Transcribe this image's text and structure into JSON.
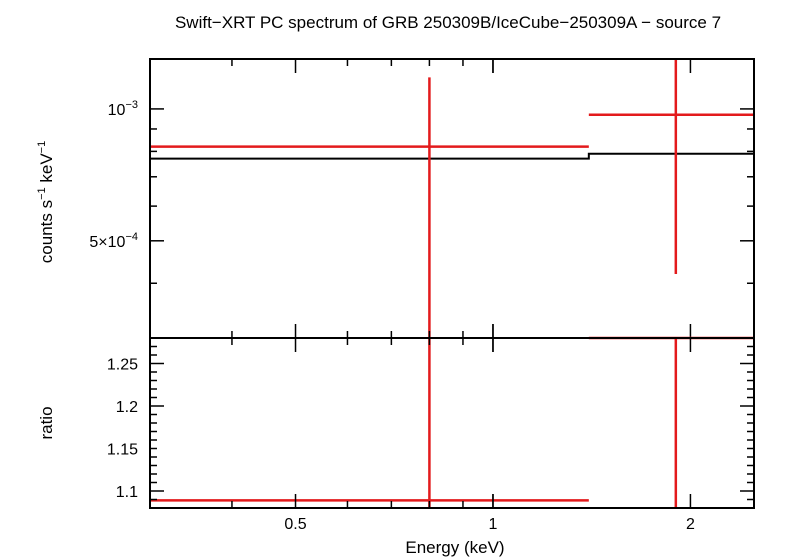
{
  "chart_data": [
    {
      "type": "scatter",
      "panel": "spectrum",
      "title": "Swift−XRT PC spectrum of GRB 250309B/IceCube−250309A − source 7",
      "ylabel_main": "counts s",
      "ylabel_exp1": "−1",
      "ylabel_mid": " keV",
      "ylabel_exp2": "−1",
      "xscale": "log",
      "yscale": "log",
      "xlim": [
        0.3,
        2.5
      ],
      "ylim": [
        0.0003,
        0.0013
      ],
      "ytick_labels": [
        {
          "value": 0.001,
          "base": "10",
          "exp": "−3"
        },
        {
          "value": 0.0005,
          "base": "5×10",
          "exp": "−4"
        }
      ],
      "data": [
        {
          "x": 0.8,
          "xlo": 0.3,
          "xhi": 1.4,
          "y": 0.00082,
          "ylo": 0.0,
          "yhi": 0.00118
        },
        {
          "x": 1.9,
          "xlo": 1.4,
          "xhi": 2.5,
          "y": 0.00097,
          "ylo": 0.00042,
          "yhi": 0.0013
        }
      ],
      "model": [
        {
          "xlo": 0.3,
          "xhi": 1.4,
          "y": 0.00077
        },
        {
          "xlo": 1.4,
          "xhi": 2.5,
          "y": 0.00079
        }
      ],
      "colors": {
        "data": "#e31a1c",
        "model": "#000000"
      }
    },
    {
      "type": "scatter",
      "panel": "ratio",
      "ylabel": "ratio",
      "xlabel": "Energy (keV)",
      "xscale": "log",
      "xlim": [
        0.3,
        2.5
      ],
      "ylim": [
        1.08,
        1.28
      ],
      "ytick_labels": [
        "1.1",
        "1.15",
        "1.2",
        "1.25"
      ],
      "xtick_labels": [
        {
          "value": 0.5,
          "label": "0.5"
        },
        {
          "value": 1,
          "label": "1"
        },
        {
          "value": 2,
          "label": "2"
        }
      ],
      "data": [
        {
          "x": 0.8,
          "xlo": 0.3,
          "xhi": 1.4,
          "y": 1.089,
          "ylo": 1.08,
          "yhi": 1.28
        },
        {
          "x": 1.9,
          "xlo": 1.4,
          "xhi": 2.5,
          "y": 1.28,
          "ylo": 1.08,
          "yhi": 1.28
        }
      ]
    }
  ]
}
